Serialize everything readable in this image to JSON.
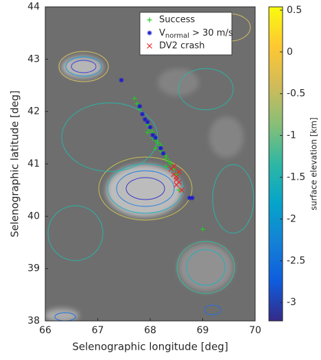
{
  "chart_data": {
    "type": "scatter",
    "xlabel": "Selenographic longitude [deg]",
    "ylabel": "Selenographic latitude [deg]",
    "xlim": [
      66,
      70
    ],
    "xticks": [
      66,
      67,
      68,
      69,
      70
    ],
    "ylim": [
      38,
      44
    ],
    "yticks": [
      38,
      39,
      40,
      41,
      42,
      43,
      44
    ],
    "legend": "upper-right",
    "series": [
      {
        "name": "Success",
        "color": "#22cc22",
        "marker": "plus",
        "x": [
          67.7,
          67.75,
          67.8,
          67.85,
          67.9,
          67.95,
          68.0,
          68.05,
          68.05,
          68.1,
          68.15,
          68.2,
          68.2,
          68.25,
          68.3,
          68.3,
          68.35,
          68.4,
          68.45,
          68.5,
          68.3,
          69.0,
          68.55,
          67.95,
          68.1
        ],
        "y": [
          42.25,
          42.15,
          42.05,
          41.95,
          41.85,
          41.75,
          41.65,
          41.6,
          41.5,
          41.45,
          41.4,
          41.35,
          41.25,
          41.2,
          41.15,
          41.1,
          41.05,
          41.0,
          40.9,
          40.8,
          40.95,
          39.75,
          40.5,
          41.6,
          41.3
        ]
      },
      {
        "name": "V_{normal} > 30 m/s",
        "color": "#1a1acc",
        "marker": "star",
        "x": [
          67.45,
          67.8,
          67.85,
          67.95,
          68.0,
          68.05,
          68.1,
          68.2,
          68.25,
          68.75,
          68.8,
          67.9
        ],
        "y": [
          42.6,
          42.1,
          41.95,
          41.8,
          41.7,
          41.55,
          41.5,
          41.3,
          41.2,
          40.35,
          40.35,
          41.85
        ]
      },
      {
        "name": "DV2 crash",
        "color": "#ee2222",
        "marker": "cross",
        "x": [
          68.4,
          68.45,
          68.5,
          68.5,
          68.55,
          68.5,
          68.6,
          68.55,
          68.45
        ],
        "y": [
          40.9,
          40.8,
          40.75,
          40.7,
          40.65,
          40.6,
          40.5,
          40.85,
          40.95
        ]
      }
    ],
    "colorbar": {
      "label": "surface elevation [km]",
      "clim": [
        -3.22,
        0.54
      ],
      "ticks": [
        -3,
        -2.5,
        -2,
        -1.5,
        -1,
        -0.5,
        0,
        0.5
      ],
      "colormap": [
        "#352a87",
        "#0f5cdd",
        "#1481d6",
        "#06a4ca",
        "#2eb7a4",
        "#87bf77",
        "#d1bb59",
        "#fec832",
        "#f9fb0e"
      ]
    }
  }
}
